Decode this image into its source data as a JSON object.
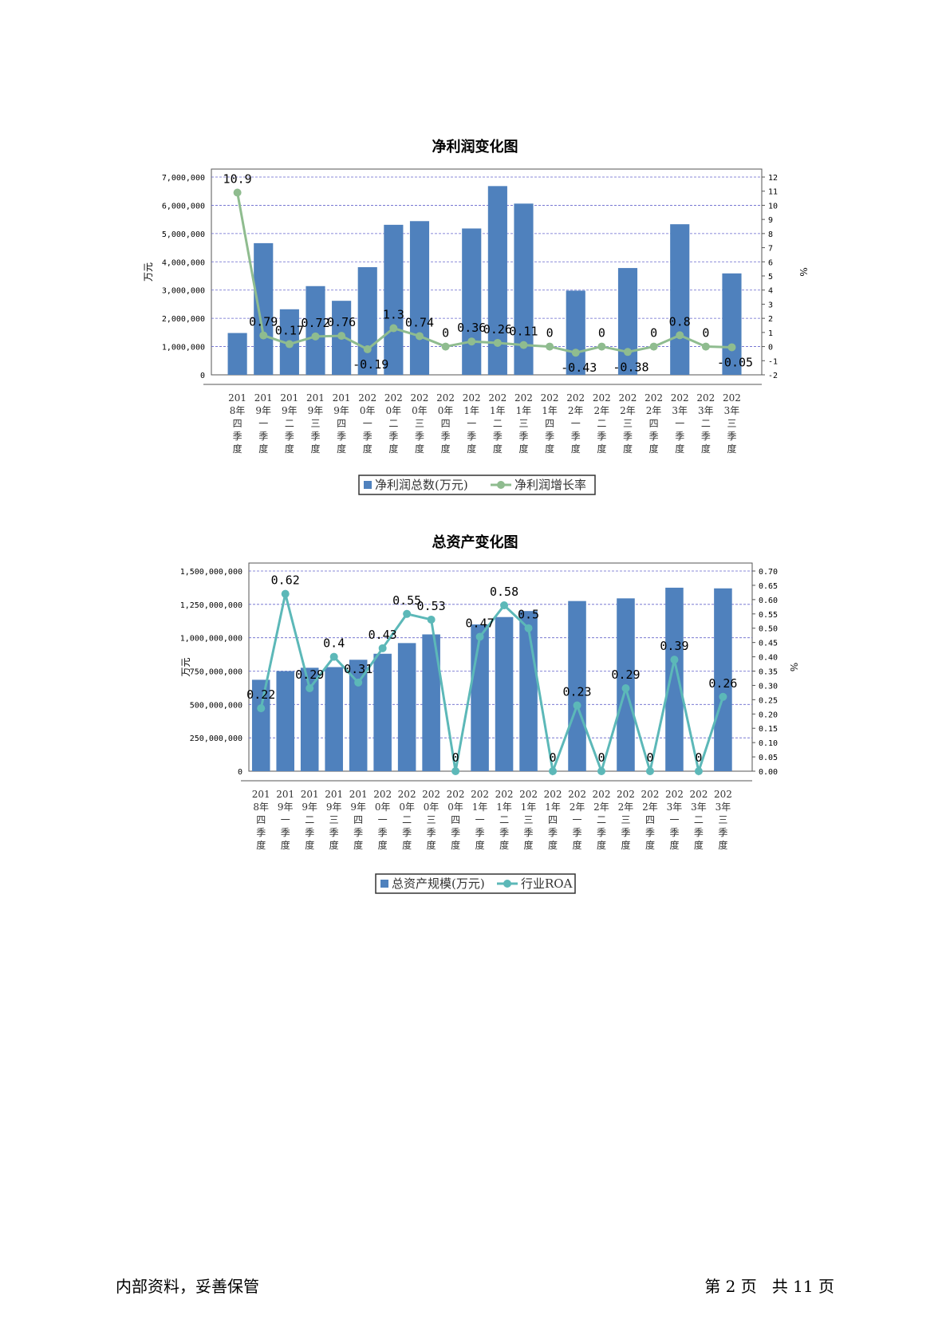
{
  "page": {
    "footer_left": "内部资料，妥善保管",
    "footer_right": "第 2 页   共 11 页"
  },
  "chart_data": [
    {
      "type": "bar+line",
      "title": "净利润变化图",
      "categories": [
        "2018年四季度",
        "2019年一季度",
        "2019年二季度",
        "2019年三季度",
        "2019年四季度",
        "2020年一季度",
        "2020年二季度",
        "2020年三季度",
        "2020年四季度",
        "2021年一季度",
        "2021年二季度",
        "2021年三季度",
        "2021年四季度",
        "2022年一季度",
        "2022年二季度",
        "2022年三季度",
        "2022年四季度",
        "2023年一季度",
        "2023年二季度",
        "2023年三季度"
      ],
      "tick_labels": [
        [
          "201",
          "8年",
          "四",
          "季",
          "度"
        ],
        [
          "201",
          "9年",
          "一",
          "季",
          "度"
        ],
        [
          "201",
          "9年",
          "二",
          "季",
          "度"
        ],
        [
          "201",
          "9年",
          "三",
          "季",
          "度"
        ],
        [
          "201",
          "9年",
          "四",
          "季",
          "度"
        ],
        [
          "202",
          "0年",
          "一",
          "季",
          "度"
        ],
        [
          "202",
          "0年",
          "二",
          "季",
          "度"
        ],
        [
          "202",
          "0年",
          "三",
          "季",
          "度"
        ],
        [
          "202",
          "0年",
          "四",
          "季",
          "度"
        ],
        [
          "202",
          "1年",
          "一",
          "季",
          "度"
        ],
        [
          "202",
          "1年",
          "二",
          "季",
          "度"
        ],
        [
          "202",
          "1年",
          "三",
          "季",
          "度"
        ],
        [
          "202",
          "1年",
          "四",
          "季",
          "度"
        ],
        [
          "202",
          "2年",
          "一",
          "季",
          "度"
        ],
        [
          "202",
          "2年",
          "二",
          "季",
          "度"
        ],
        [
          "202",
          "2年",
          "三",
          "季",
          "度"
        ],
        [
          "202",
          "2年",
          "四",
          "季",
          "度"
        ],
        [
          "202",
          "3年",
          "一",
          "季",
          "度"
        ],
        [
          "202",
          "3年",
          "二",
          "季",
          "度"
        ],
        [
          "202",
          "3年",
          "三",
          "季",
          "度"
        ]
      ],
      "series": [
        {
          "name": "净利润总数(万元)",
          "type": "bar",
          "axis": "left",
          "values": [
            1480000,
            4660000,
            2320000,
            3140000,
            2620000,
            3810000,
            5310000,
            5440000,
            0,
            5180000,
            6680000,
            6060000,
            0,
            2980000,
            0,
            3780000,
            0,
            5330000,
            0,
            3590000
          ]
        },
        {
          "name": "净利润增长率",
          "type": "line",
          "axis": "right",
          "values": [
            10.9,
            0.79,
            0.17,
            0.72,
            0.76,
            -0.19,
            1.3,
            0.74,
            0,
            0.36,
            0.26,
            0.11,
            0,
            -0.43,
            0,
            -0.38,
            0,
            0.8,
            0,
            -0.05
          ],
          "labels": [
            "10.9",
            "0.79",
            "0.17",
            "0.72",
            "0.76",
            "-0.19",
            "1.3",
            "0.74",
            "0",
            "0.36",
            "0.26",
            "0.11",
            "0",
            "-0.43",
            "0",
            "-0.38",
            "0",
            "0.8",
            "0",
            "-0.05"
          ]
        }
      ],
      "left_axis": {
        "unit": "万元",
        "min": 0,
        "max": 7000000,
        "ticks": [
          "0",
          "1,000,000",
          "2,000,000",
          "3,000,000",
          "4,000,000",
          "5,000,000",
          "6,000,000",
          "7,000,000"
        ]
      },
      "right_axis": {
        "unit": "%",
        "min": -2,
        "max": 12,
        "ticks": [
          "-2",
          "-1",
          "0",
          "1",
          "2",
          "3",
          "4",
          "5",
          "6",
          "7",
          "8",
          "9",
          "10",
          "11",
          "12"
        ]
      },
      "colors": {
        "bar": "#4f81bd",
        "line": "#8fbc8f",
        "grid": "#6666cc"
      },
      "grid": true,
      "legend": "bottom"
    },
    {
      "type": "bar+line",
      "title": "总资产变化图",
      "categories": [
        "2018年四季度",
        "2019年一季度",
        "2019年二季度",
        "2019年三季度",
        "2019年四季度",
        "2020年一季度",
        "2020年二季度",
        "2020年三季度",
        "2020年四季度",
        "2021年一季度",
        "2021年二季度",
        "2021年三季度",
        "2021年四季度",
        "2022年一季度",
        "2022年二季度",
        "2022年三季度",
        "2022年四季度",
        "2023年一季度",
        "2023年二季度",
        "2023年三季度"
      ],
      "tick_labels": [
        [
          "201",
          "8年",
          "四",
          "季",
          "度"
        ],
        [
          "201",
          "9年",
          "一",
          "季",
          "度"
        ],
        [
          "201",
          "9年",
          "二",
          "季",
          "度"
        ],
        [
          "201",
          "9年",
          "三",
          "季",
          "度"
        ],
        [
          "201",
          "9年",
          "四",
          "季",
          "度"
        ],
        [
          "202",
          "0年",
          "一",
          "季",
          "度"
        ],
        [
          "202",
          "0年",
          "二",
          "季",
          "度"
        ],
        [
          "202",
          "0年",
          "三",
          "季",
          "度"
        ],
        [
          "202",
          "0年",
          "四",
          "季",
          "度"
        ],
        [
          "202",
          "1年",
          "一",
          "季",
          "度"
        ],
        [
          "202",
          "1年",
          "二",
          "季",
          "度"
        ],
        [
          "202",
          "1年",
          "三",
          "季",
          "度"
        ],
        [
          "202",
          "1年",
          "四",
          "季",
          "度"
        ],
        [
          "202",
          "2年",
          "一",
          "季",
          "度"
        ],
        [
          "202",
          "2年",
          "二",
          "季",
          "度"
        ],
        [
          "202",
          "2年",
          "三",
          "季",
          "度"
        ],
        [
          "202",
          "2年",
          "四",
          "季",
          "度"
        ],
        [
          "202",
          "3年",
          "一",
          "季",
          "度"
        ],
        [
          "202",
          "3年",
          "二",
          "季",
          "度"
        ],
        [
          "202",
          "3年",
          "三",
          "季",
          "度"
        ]
      ],
      "series": [
        {
          "name": "总资产规模(万元)",
          "type": "bar",
          "axis": "left",
          "values": [
            685000000,
            750000000,
            775000000,
            780000000,
            835000000,
            880000000,
            960000000,
            1025000000,
            0,
            1100000000,
            1155000000,
            1200000000,
            0,
            1275000000,
            0,
            1295000000,
            0,
            1375000000,
            0,
            1370000000
          ]
        },
        {
          "name": "行业ROA",
          "type": "line",
          "axis": "right",
          "values": [
            0.22,
            0.62,
            0.29,
            0.4,
            0.31,
            0.43,
            0.55,
            0.53,
            0,
            0.47,
            0.58,
            0.5,
            0,
            0.23,
            0,
            0.29,
            0,
            0.39,
            0,
            0.26
          ],
          "labels": [
            "0.22",
            "0.62",
            "0.29",
            "0.4",
            "0.31",
            "0.43",
            "0.55",
            "0.53",
            "0",
            "0.47",
            "0.58",
            "0.5",
            "0",
            "0.23",
            "0",
            "0.29",
            "0",
            "0.39",
            "0",
            "0.26"
          ]
        }
      ],
      "left_axis": {
        "unit": "万元",
        "min": 0,
        "max": 1500000000,
        "ticks": [
          "0",
          "250,000,000",
          "500,000,000",
          "750,000,000",
          "1,000,000,000",
          "1,250,000,000",
          "1,500,000,000"
        ]
      },
      "right_axis": {
        "unit": "%",
        "min": 0,
        "max": 0.7,
        "ticks": [
          "0.00",
          "0.05",
          "0.10",
          "0.15",
          "0.20",
          "0.25",
          "0.30",
          "0.35",
          "0.40",
          "0.45",
          "0.50",
          "0.55",
          "0.60",
          "0.65",
          "0.70"
        ]
      },
      "colors": {
        "bar": "#4f81bd",
        "line": "#5cb8b8",
        "grid": "#6666cc"
      },
      "grid": true,
      "legend": "bottom"
    }
  ]
}
